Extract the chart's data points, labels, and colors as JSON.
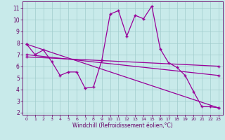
{
  "bg_color": "#c8eaea",
  "grid_color": "#a0cccc",
  "line_color": "#990099",
  "xlabel": "Windchill (Refroidissement éolien,°C)",
  "xlim": [
    -0.5,
    23.5
  ],
  "ylim": [
    1.8,
    11.6
  ],
  "xticks": [
    0,
    1,
    2,
    3,
    4,
    5,
    6,
    7,
    8,
    9,
    10,
    11,
    12,
    13,
    14,
    15,
    16,
    17,
    18,
    19,
    20,
    21,
    22,
    23
  ],
  "yticks": [
    2,
    3,
    4,
    5,
    6,
    7,
    8,
    9,
    10,
    11
  ],
  "curve1_x": [
    0,
    1,
    2,
    3,
    4,
    5,
    6,
    7,
    8,
    9,
    10,
    11,
    12,
    13,
    14,
    15,
    16,
    17,
    18,
    19,
    20,
    21,
    22,
    23
  ],
  "curve1_y": [
    7.9,
    7.0,
    7.4,
    6.4,
    5.2,
    5.5,
    5.5,
    4.1,
    4.2,
    6.5,
    10.5,
    10.8,
    8.6,
    10.4,
    10.1,
    11.2,
    7.5,
    6.3,
    5.9,
    5.2,
    3.8,
    2.5,
    2.5,
    2.4
  ],
  "line1_x": [
    0,
    23
  ],
  "line1_y": [
    7.9,
    2.4
  ],
  "line2_x": [
    0,
    23
  ],
  "line2_y": [
    7.0,
    5.2
  ],
  "line3_x": [
    0,
    23
  ],
  "line3_y": [
    6.8,
    6.0
  ],
  "spine_color": "#660066",
  "tick_color": "#660066",
  "xlabel_fontsize": 5.5,
  "ytick_fontsize": 5.5,
  "xtick_fontsize": 4.5
}
